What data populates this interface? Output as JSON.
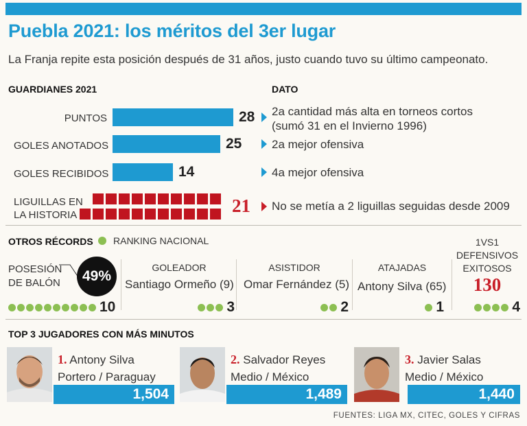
{
  "header": {
    "title": "Puebla 2021: los méritos del 3er lugar",
    "subtitle": "La Franja repite esta posición después de 31 años, justo cuando tuvo su último campeonato."
  },
  "guardianes": {
    "heading": "GUARDIANES 2021",
    "dato_heading": "DATO",
    "stats": [
      {
        "label": "PUNTOS",
        "value": 28,
        "value_text": "28",
        "dato_line1": "2a cantidad más alta en torneos cortos",
        "dato_line2": "(sumó 31 en el Invierno 1996)"
      },
      {
        "label": "GOLES ANOTADOS",
        "value": 25,
        "value_text": "25",
        "dato_line1": "2a mejor ofensiva"
      },
      {
        "label": "GOLES RECIBIDOS",
        "value": 14,
        "value_text": "14",
        "dato_line1": "4a mejor ofensiva"
      }
    ],
    "liguillas": {
      "label_line1": "LIGUILLAS EN",
      "label_line2": "LA HISTORIA",
      "value": 21,
      "value_text": "21",
      "dato": "No se metía a 2 liguillas seguidas desde 2009",
      "color": "#c0141f"
    }
  },
  "otros": {
    "heading": "OTROS RÉCORDS",
    "legend": "RANKING NACIONAL",
    "posesion": {
      "label_line1": "POSESIÓN",
      "label_line2": "DE BALÓN",
      "value": "49%",
      "rank": 10,
      "rank_text": "10"
    },
    "items": [
      {
        "heading": "GOLEADOR",
        "name": "Santiago Ormeño (9)",
        "rank": 3,
        "rank_text": "3"
      },
      {
        "heading": "ASISTIDOR",
        "name": "Omar Fernández (5)",
        "rank": 2,
        "rank_text": "2"
      },
      {
        "heading": "ATAJADAS",
        "name": "Antony Silva (65)",
        "rank": 1,
        "rank_text": "1"
      }
    ],
    "defensivos": {
      "line1": "1VS1",
      "line2": "DEFENSIVOS",
      "line3": "EXITOSOS",
      "value": "130",
      "rank": 4,
      "rank_text": "4"
    }
  },
  "top3": {
    "heading": "TOP 3 JUGADORES CON MÁS MINUTOS",
    "players": [
      {
        "num": "1.",
        "name": "Antony Silva",
        "role": "Portero / Paraguay",
        "minutes": "1,504"
      },
      {
        "num": "2.",
        "name": "Salvador Reyes",
        "role": "Medio / México",
        "minutes": "1,489"
      },
      {
        "num": "3.",
        "name": "Javier Salas",
        "role": "Medio / México",
        "minutes": "1,440"
      }
    ]
  },
  "footer": "FUENTES: LIGA MX, CITEC, GOLES Y CIFRAS",
  "colors": {
    "accent": "#1e9ad1",
    "red": "#c81e28",
    "green": "#8cbf52"
  }
}
